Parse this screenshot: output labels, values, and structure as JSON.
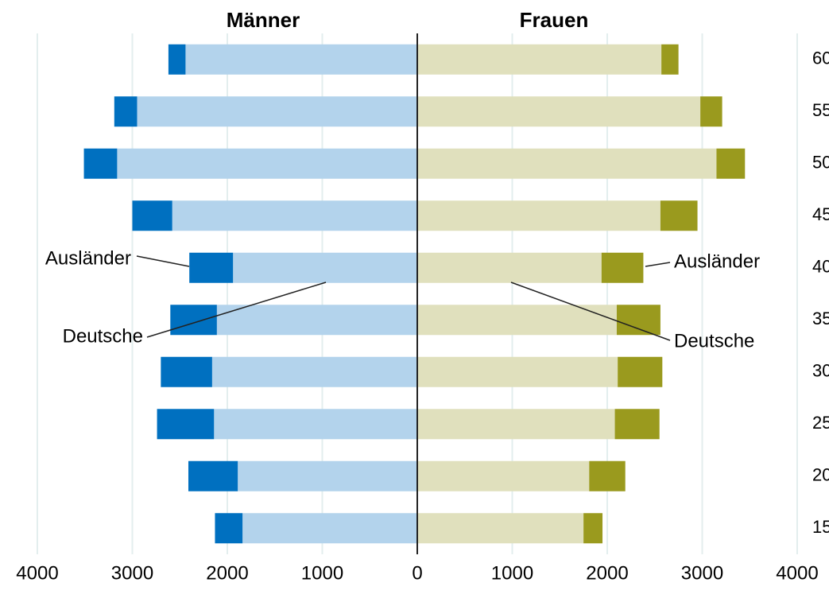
{
  "chart_data": {
    "type": "pyramid",
    "left_title": "Männer",
    "right_title": "Frauen",
    "categories": [
      "60",
      "55",
      "50",
      "45",
      "40",
      "35",
      "30",
      "25",
      "20",
      "15"
    ],
    "series": [
      {
        "name": "Deutsche",
        "side": "left",
        "color": "#b3d3ec",
        "values": [
          2440,
          2950,
          3160,
          2580,
          1940,
          2110,
          2160,
          2140,
          1890,
          1840
        ]
      },
      {
        "name": "Ausländer",
        "side": "left",
        "color": "#0070c0",
        "values": [
          180,
          240,
          350,
          420,
          460,
          490,
          540,
          600,
          520,
          290
        ]
      },
      {
        "name": "Deutsche",
        "side": "right",
        "color": "#e0e0bd",
        "values": [
          2570,
          2980,
          3150,
          2560,
          1940,
          2100,
          2110,
          2080,
          1810,
          1750
        ]
      },
      {
        "name": "Ausländer",
        "side": "right",
        "color": "#9a9a1e",
        "values": [
          180,
          230,
          300,
          390,
          440,
          460,
          470,
          470,
          380,
          200
        ]
      }
    ],
    "xlim": [
      0,
      4000
    ],
    "xticks": [
      0,
      1000,
      2000,
      3000,
      4000
    ],
    "grid": true
  }
}
